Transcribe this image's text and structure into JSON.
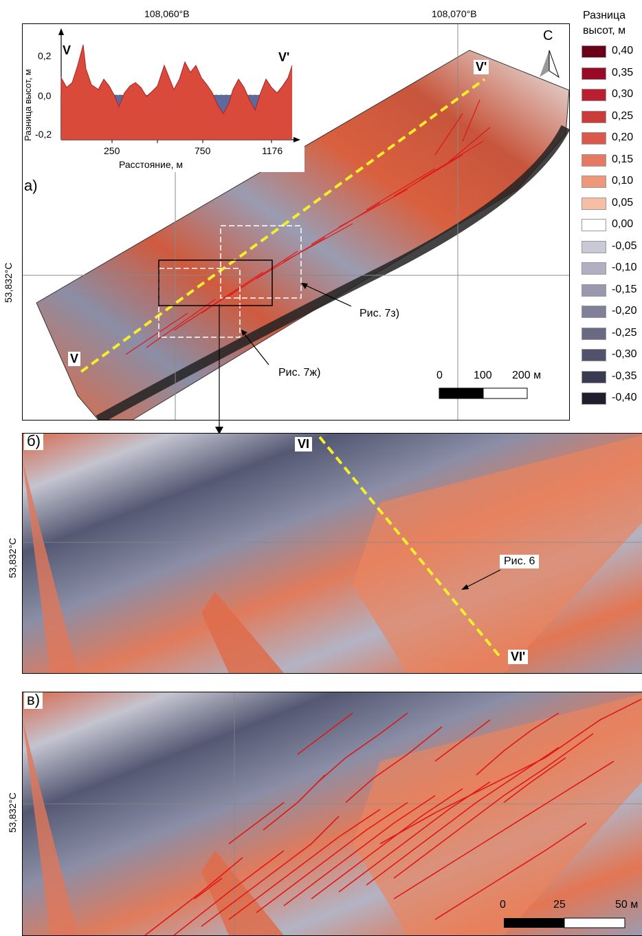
{
  "panel_a": {
    "label": "а)",
    "lon_ticks": [
      "108,060°В",
      "108,070°В"
    ],
    "lat_tick": "53,832°С",
    "north_label": "С",
    "profile_start": "V",
    "profile_end": "V'",
    "callouts": [
      "Рис. 7з)",
      "Рис. 7ж)"
    ],
    "scale_labels": [
      "0",
      "100",
      "200 м"
    ],
    "inset": {
      "ylabel": "Разница высот, м",
      "xlabel": "Расстояние, м",
      "start_label": "V",
      "end_label": "V'",
      "y_ticks": [
        "0,2",
        "0,0",
        "-0,2"
      ],
      "x_ticks": [
        "250",
        "750",
        "1176"
      ]
    }
  },
  "panel_b": {
    "label": "б)",
    "lat_tick": "53,832°С",
    "profile_start": "VI",
    "profile_end": "VI'",
    "callout": "Рис. 6"
  },
  "panel_c": {
    "label": "в)",
    "lat_tick": "53,832°С",
    "scale_labels": [
      "0",
      "25",
      "50 м"
    ]
  },
  "legend": {
    "title_line1": "Разница",
    "title_line2": "высот, м",
    "items": [
      {
        "label": "0,40",
        "color": "#6b0018"
      },
      {
        "label": "0,35",
        "color": "#9a0a26"
      },
      {
        "label": "0,30",
        "color": "#b81f30"
      },
      {
        "label": "0,25",
        "color": "#cc3b3b"
      },
      {
        "label": "0,20",
        "color": "#d9584a"
      },
      {
        "label": "0,15",
        "color": "#e57962"
      },
      {
        "label": "0,10",
        "color": "#ee977a"
      },
      {
        "label": "0,05",
        "color": "#f6bfa5"
      },
      {
        "label": "0,00",
        "color": "#ffffff"
      },
      {
        "label": "-0,05",
        "color": "#c9c9d6"
      },
      {
        "label": "-0,10",
        "color": "#b0b0c3"
      },
      {
        "label": "-0,15",
        "color": "#9898ae"
      },
      {
        "label": "-0,20",
        "color": "#808098"
      },
      {
        "label": "-0,25",
        "color": "#696983"
      },
      {
        "label": "-0,30",
        "color": "#52526d"
      },
      {
        "label": "-0,35",
        "color": "#3a3a52"
      },
      {
        "label": "-0,40",
        "color": "#1e1e2e"
      }
    ]
  },
  "colors": {
    "positive_accent": "#d94a3a",
    "negative_accent": "#5f6a9c",
    "profile_line": "#f4ee2c",
    "fault_lines": "#e01616"
  }
}
